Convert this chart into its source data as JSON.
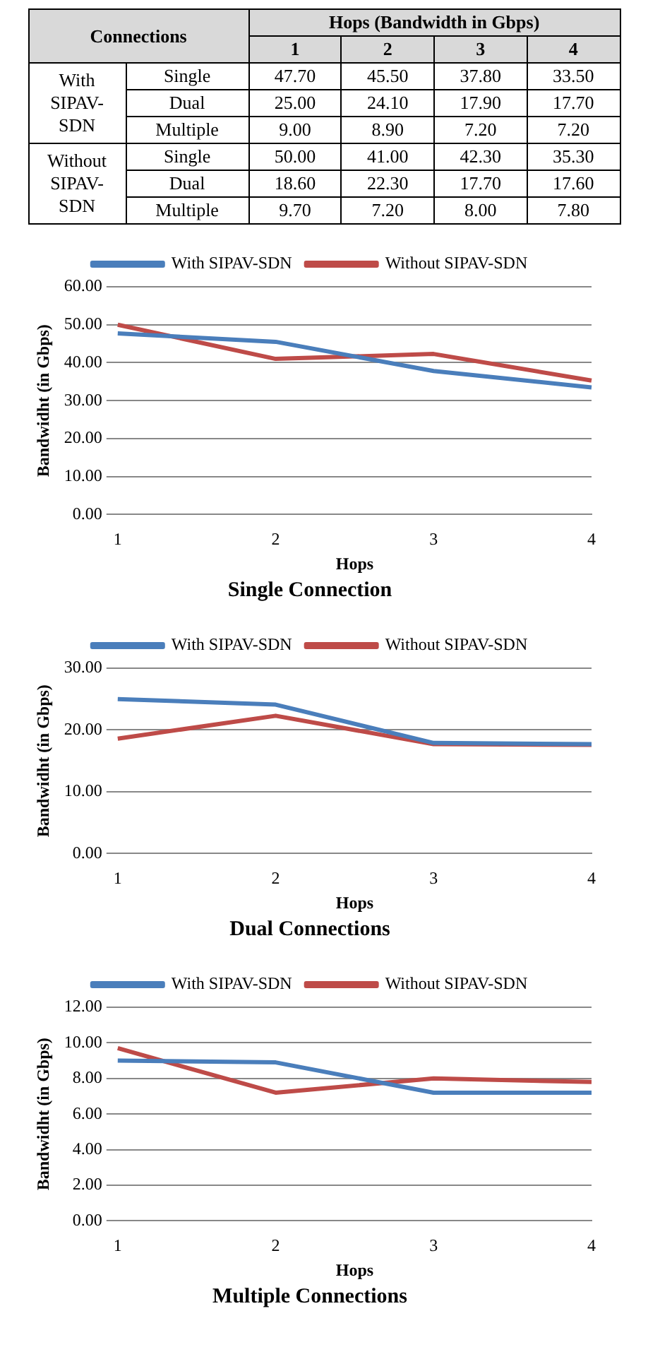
{
  "chart_data": [
    {
      "type": "heatmap",
      "xlabel": "Hops (Bandwidth in Gbps)",
      "ylabel": "Connections",
      "categories": [
        "1",
        "2",
        "3",
        "4"
      ],
      "y_categories": [
        "Single",
        "Dual",
        "Multiple",
        "Single",
        "Dual",
        "Multiple"
      ],
      "annotations": [
        "With SIPAV-SDN",
        "Without SIPAV-SDN"
      ],
      "cells": [
        [
          47.7,
          45.5,
          37.8,
          33.5
        ],
        [
          25,
          24.1,
          17.9,
          17.7
        ],
        [
          9,
          8.9,
          7.2,
          7.2
        ],
        [
          50,
          41,
          42.3,
          35.3
        ],
        [
          18.6,
          22.3,
          17.7,
          17.6
        ],
        [
          9.7,
          7.2,
          8,
          7.8
        ]
      ],
      "cell_labels": [
        [
          "47.70",
          "45.50",
          "37.80",
          "33.50"
        ],
        [
          "25.00",
          "24.10",
          "17.90",
          "17.70"
        ],
        [
          "9.00",
          "8.90",
          "7.20",
          "7.20"
        ],
        [
          "50.00",
          "41.00",
          "42.30",
          "35.30"
        ],
        [
          "18.60",
          "22.30",
          "17.70",
          "17.60"
        ],
        [
          "9.70",
          "7.20",
          "8.00",
          "7.80"
        ]
      ]
    },
    {
      "type": "line",
      "title": "Single Connection",
      "xlabel": "Hops",
      "ylabel": "Bandwidht (in Gbps)",
      "categories": [
        "1",
        "2",
        "3",
        "4"
      ],
      "series": [
        {
          "name": "With SIPAV-SDN",
          "color": "#4a7ebb",
          "values": [
            47.7,
            45.5,
            37.8,
            33.5
          ]
        },
        {
          "name": "Without SIPAV-SDN",
          "color": "#be4b48",
          "values": [
            50,
            41,
            42.3,
            35.3
          ]
        }
      ],
      "ylim": [
        0,
        60
      ],
      "yticks": [
        {
          "value": 0,
          "label": "0.00"
        },
        {
          "value": 10,
          "label": "10.00"
        },
        {
          "value": 20,
          "label": "20.00"
        },
        {
          "value": 30,
          "label": "30.00"
        },
        {
          "value": 40,
          "label": "40.00"
        },
        {
          "value": 50,
          "label": "50.00"
        },
        {
          "value": 60,
          "label": "60.00"
        }
      ],
      "grid": "y",
      "legend": "top",
      "marker": "none",
      "line_style": "solid"
    },
    {
      "type": "line",
      "title": "Dual Connections",
      "xlabel": "Hops",
      "ylabel": "Bandwidht (in Gbps)",
      "categories": [
        "1",
        "2",
        "3",
        "4"
      ],
      "series": [
        {
          "name": "With SIPAV-SDN",
          "color": "#4a7ebb",
          "values": [
            25,
            24.1,
            17.9,
            17.7
          ]
        },
        {
          "name": "Without SIPAV-SDN",
          "color": "#be4b48",
          "values": [
            18.6,
            22.3,
            17.7,
            17.6
          ]
        }
      ],
      "ylim": [
        0,
        30
      ],
      "yticks": [
        {
          "value": 0,
          "label": "0.00"
        },
        {
          "value": 10,
          "label": "10.00"
        },
        {
          "value": 20,
          "label": "20.00"
        },
        {
          "value": 30,
          "label": "30.00"
        }
      ],
      "grid": "y",
      "legend": "top",
      "marker": "none",
      "line_style": "solid"
    },
    {
      "type": "line",
      "title": "Multiple Connections",
      "xlabel": "Hops",
      "ylabel": "Bandwidht (in Gbps)",
      "categories": [
        "1",
        "2",
        "3",
        "4"
      ],
      "series": [
        {
          "name": "With SIPAV-SDN",
          "color": "#4a7ebb",
          "values": [
            9,
            8.9,
            7.2,
            7.2
          ]
        },
        {
          "name": "Without SIPAV-SDN",
          "color": "#be4b48",
          "values": [
            9.7,
            7.2,
            8,
            7.8
          ]
        }
      ],
      "ylim": [
        0,
        12
      ],
      "yticks": [
        {
          "value": 0,
          "label": "0.00"
        },
        {
          "value": 2,
          "label": "2.00"
        },
        {
          "value": 4,
          "label": "4.00"
        },
        {
          "value": 6,
          "label": "6.00"
        },
        {
          "value": 8,
          "label": "8.00"
        },
        {
          "value": 10,
          "label": "10.00"
        },
        {
          "value": 12,
          "label": "12.00"
        }
      ],
      "grid": "y",
      "legend": "top",
      "marker": "none",
      "line_style": "solid"
    }
  ]
}
